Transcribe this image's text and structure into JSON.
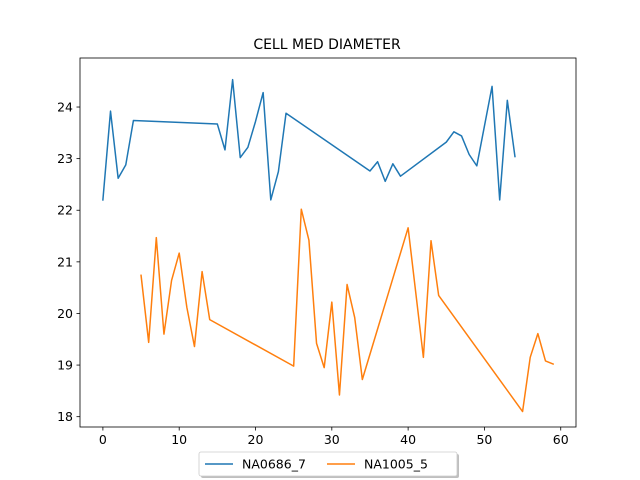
{
  "chart_data": {
    "type": "line",
    "title": "CELL MED DIAMETER",
    "xlabel": "",
    "ylabel": "",
    "xlim": [
      -3,
      62
    ],
    "ylim": [
      17.8,
      24.95
    ],
    "xticks": [
      0,
      10,
      20,
      30,
      40,
      50,
      60
    ],
    "yticks": [
      18,
      19,
      20,
      21,
      22,
      23,
      24
    ],
    "grid": false,
    "legend_position": "bottom-center",
    "series": [
      {
        "name": "NA0686_7",
        "color": "#1f77b4",
        "points": [
          [
            0,
            22.2
          ],
          [
            1,
            23.92
          ],
          [
            2,
            22.62
          ],
          [
            3,
            22.88
          ],
          [
            4,
            23.74
          ],
          [
            15,
            23.67
          ],
          [
            16,
            23.17
          ],
          [
            17,
            24.53
          ],
          [
            18,
            23.02
          ],
          [
            19,
            23.22
          ],
          [
            20,
            23.72
          ],
          [
            21,
            24.28
          ],
          [
            22,
            22.2
          ],
          [
            23,
            22.75
          ],
          [
            24,
            23.88
          ],
          [
            35,
            22.76
          ],
          [
            36,
            22.94
          ],
          [
            37,
            22.56
          ],
          [
            38,
            22.9
          ],
          [
            39,
            22.66
          ],
          [
            45,
            23.32
          ],
          [
            46,
            23.52
          ],
          [
            47,
            23.44
          ],
          [
            48,
            23.08
          ],
          [
            49,
            22.86
          ],
          [
            51,
            24.4
          ],
          [
            52,
            22.2
          ],
          [
            53,
            24.13
          ],
          [
            54,
            23.04
          ]
        ]
      },
      {
        "name": "NA1005_5",
        "color": "#ff7f0e",
        "points": [
          [
            5,
            20.74
          ],
          [
            6,
            19.44
          ],
          [
            7,
            21.47
          ],
          [
            8,
            19.6
          ],
          [
            9,
            20.64
          ],
          [
            10,
            21.17
          ],
          [
            11,
            20.12
          ],
          [
            12,
            19.36
          ],
          [
            13,
            20.81
          ],
          [
            14,
            19.88
          ],
          [
            25,
            18.98
          ],
          [
            26,
            22.02
          ],
          [
            27,
            21.42
          ],
          [
            28,
            19.42
          ],
          [
            29,
            18.95
          ],
          [
            30,
            20.22
          ],
          [
            31,
            18.42
          ],
          [
            32,
            20.56
          ],
          [
            33,
            19.92
          ],
          [
            34,
            18.72
          ],
          [
            40,
            21.66
          ],
          [
            42,
            19.15
          ],
          [
            43,
            21.41
          ],
          [
            44,
            20.35
          ],
          [
            55,
            18.1
          ],
          [
            56,
            19.15
          ],
          [
            57,
            19.61
          ],
          [
            58,
            19.08
          ],
          [
            59,
            19.02
          ]
        ]
      }
    ]
  }
}
